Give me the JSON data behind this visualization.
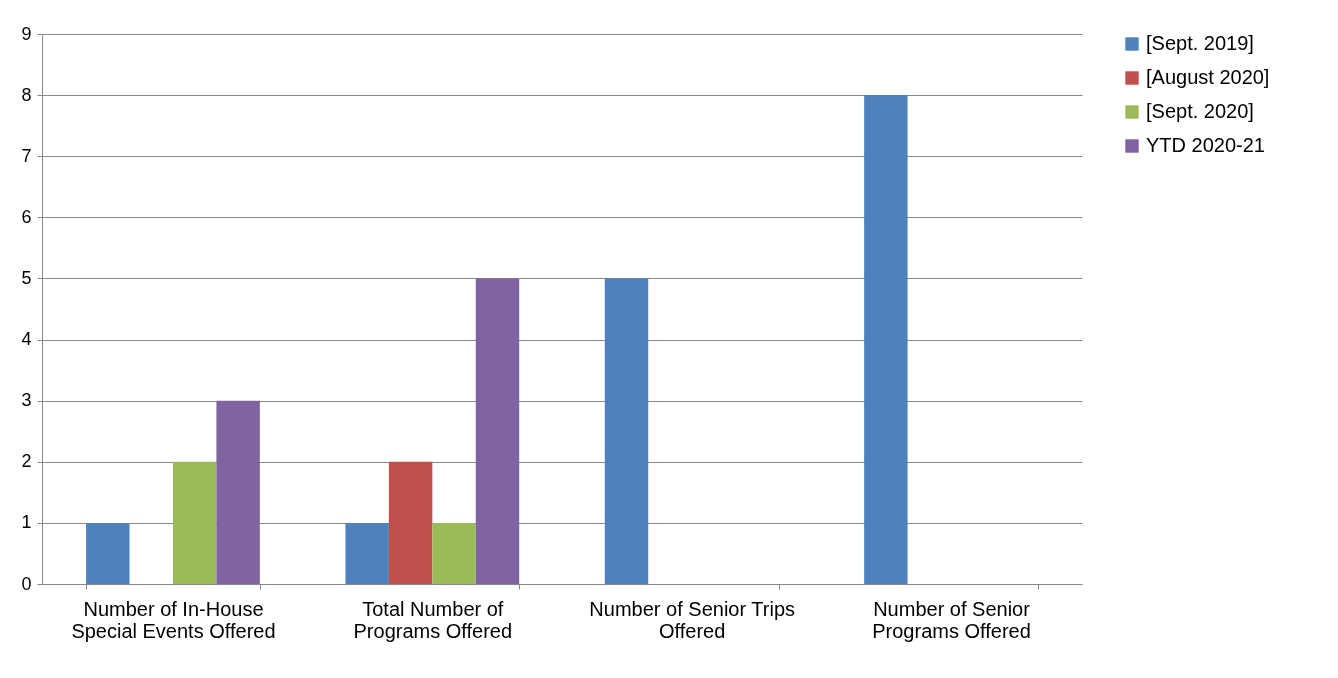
{
  "chart_data": {
    "type": "bar",
    "categories": [
      "Number of In-House Special Events Offered",
      "Total Number of Programs Offered",
      "Number of Senior Trips Offered",
      "Number of Senior Programs Offered"
    ],
    "series": [
      {
        "name": "[Sept. 2019]",
        "color": "#4f81bd",
        "values": [
          1,
          1,
          5,
          8
        ]
      },
      {
        "name": "[August 2020]",
        "color": "#c0504d",
        "values": [
          null,
          2,
          null,
          null
        ]
      },
      {
        "name": "[Sept. 2020]",
        "color": "#9bbb59",
        "values": [
          2,
          1,
          null,
          null
        ]
      },
      {
        "name": "YTD 2020-21",
        "color": "#8064a2",
        "values": [
          3,
          5,
          null,
          null
        ]
      }
    ],
    "ylim": [
      0,
      9
    ],
    "yticks": [
      0,
      1,
      2,
      3,
      4,
      5,
      6,
      7,
      8,
      9
    ],
    "grid": "y",
    "legend": "right"
  }
}
